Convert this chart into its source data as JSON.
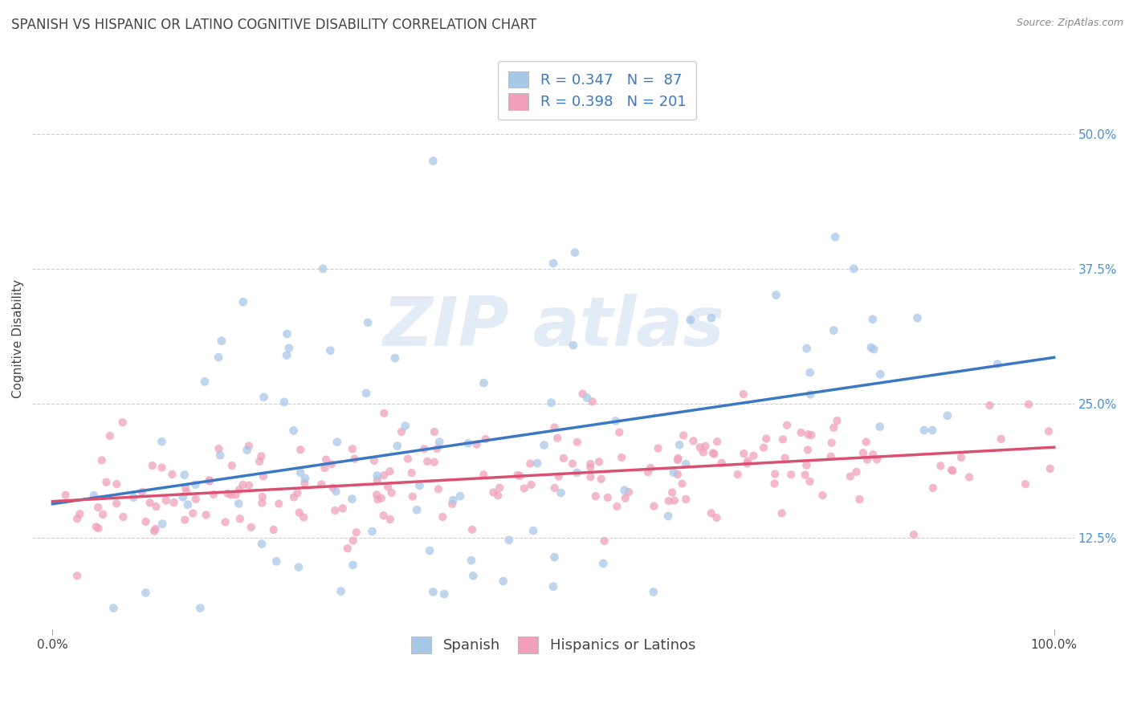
{
  "title": "SPANISH VS HISPANIC OR LATINO COGNITIVE DISABILITY CORRELATION CHART",
  "source_text": "Source: ZipAtlas.com",
  "ylabel": "Cognitive Disability",
  "xlim": [
    -0.02,
    1.02
  ],
  "ylim": [
    0.04,
    0.58
  ],
  "xtick_positions": [
    0.0,
    1.0
  ],
  "xtick_labels": [
    "0.0%",
    "100.0%"
  ],
  "ytick_values": [
    0.125,
    0.25,
    0.375,
    0.5
  ],
  "ytick_labels": [
    "12.5%",
    "25.0%",
    "37.5%",
    "50.0%"
  ],
  "series1": {
    "label": "Spanish",
    "color": "#a8c8e8",
    "line_color": "#3b78c3",
    "R": 0.347,
    "N": 87
  },
  "series2": {
    "label": "Hispanics or Latinos",
    "color": "#f0a0b8",
    "line_color": "#d95070",
    "R": 0.398,
    "N": 201
  },
  "background_color": "#ffffff",
  "grid_color": "#cccccc",
  "title_fontsize": 12,
  "axis_label_fontsize": 11,
  "tick_fontsize": 11,
  "legend_fontsize": 13,
  "right_tick_color": "#4a90d9",
  "watermark_color": "#d0dff0",
  "watermark_alpha": 0.6
}
